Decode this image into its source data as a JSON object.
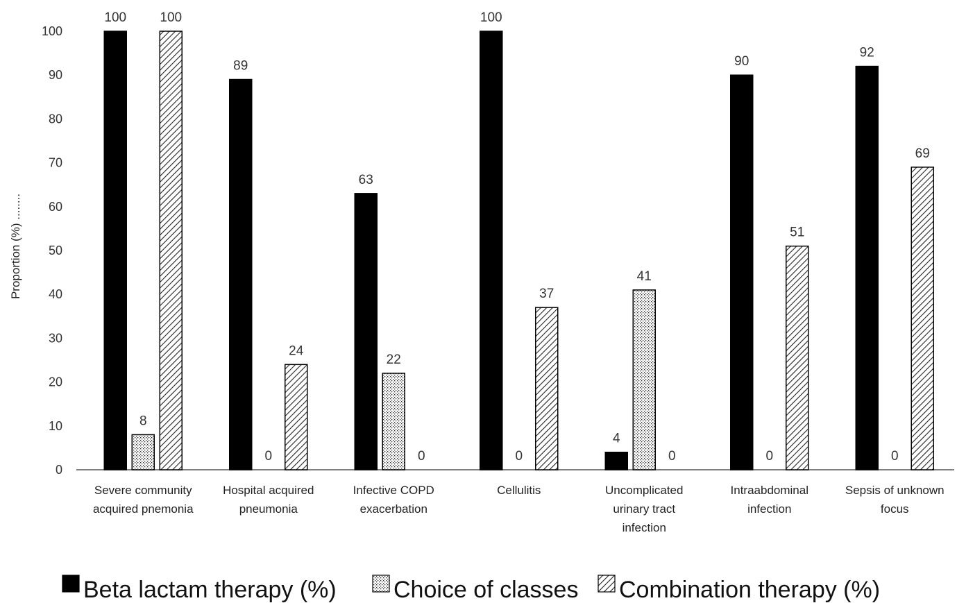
{
  "chart_data": {
    "type": "bar",
    "title": "",
    "xlabel": "",
    "ylabel": "Proportion (%) ........",
    "ylim": [
      0,
      100
    ],
    "yticks": [
      0,
      10,
      20,
      30,
      40,
      50,
      60,
      70,
      80,
      90,
      100
    ],
    "grid": false,
    "legend_position": "bottom",
    "categories": [
      [
        "Severe community",
        "acquired pnemonia"
      ],
      [
        "Hospital acquired",
        "pneumonia"
      ],
      [
        "Infective COPD",
        "exacerbation"
      ],
      [
        "Cellulitis"
      ],
      [
        "Uncomplicated",
        "urinary tract",
        "infection"
      ],
      [
        "Intraabdominal",
        "infection"
      ],
      [
        "Sepsis of unknown",
        "focus"
      ]
    ],
    "series": [
      {
        "name": "Beta lactam therapy (%)",
        "pattern": "solid-black",
        "values": [
          100,
          89,
          63,
          100,
          4,
          90,
          92
        ]
      },
      {
        "name": "Choice of classes",
        "pattern": "dotted",
        "values": [
          8,
          0,
          22,
          0,
          41,
          0,
          0
        ]
      },
      {
        "name": "Combination therapy (%)",
        "pattern": "diagonal-hatch",
        "values": [
          100,
          24,
          0,
          37,
          0,
          51,
          69
        ]
      }
    ]
  }
}
